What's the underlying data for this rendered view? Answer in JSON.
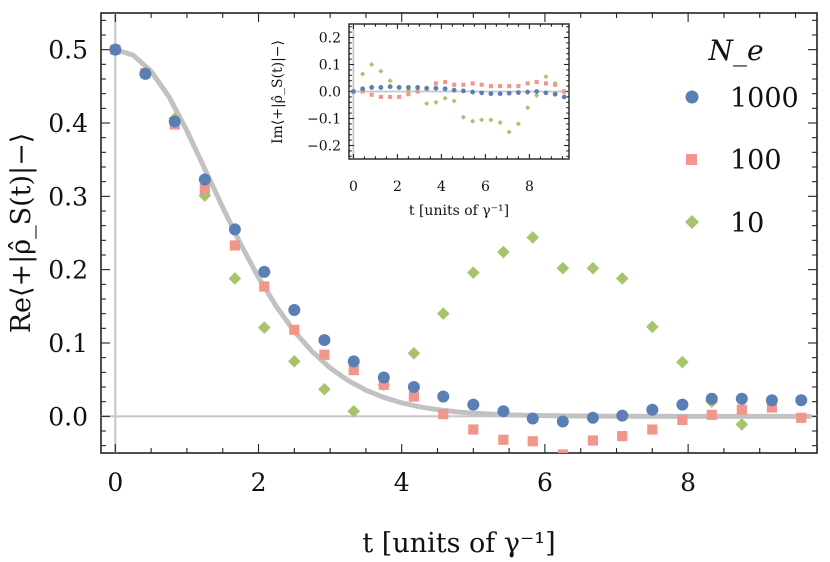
{
  "chart_data": [
    {
      "type": "scatter",
      "title": "",
      "xlabel": "t [units of γ⁻¹]",
      "ylabel": "Re⟨+|ρ̂_S(t)|−⟩",
      "xlim": [
        -0.2,
        9.8
      ],
      "ylim": [
        -0.05,
        0.55
      ],
      "xticks": [
        "0",
        "2",
        "4",
        "6",
        "8"
      ],
      "yticks": [
        "0.0",
        "0.1",
        "0.2",
        "0.3",
        "0.4",
        "0.5"
      ],
      "grid": false,
      "legend": {
        "title": "N_e",
        "placement": "right"
      },
      "reference_curve": {
        "type": "line",
        "note": "",
        "x": [
          0,
          0.25,
          0.5,
          0.75,
          1,
          1.25,
          1.5,
          1.75,
          2,
          2.25,
          2.5,
          2.75,
          3,
          3.25,
          3.5,
          3.75,
          4,
          4.25,
          4.5,
          4.75,
          5,
          5.25,
          5.5,
          5.75,
          6,
          6.5,
          7,
          7.5,
          8,
          8.5,
          9,
          9.7
        ],
        "y": [
          0.5,
          0.4925,
          0.4704,
          0.4357,
          0.3894,
          0.3372,
          0.2849,
          0.2349,
          0.1894,
          0.1497,
          0.1158,
          0.0882,
          0.066,
          0.0489,
          0.0357,
          0.0258,
          0.0184,
          0.013,
          0.0091,
          0.0063,
          0.0043,
          0.003,
          0.002,
          0.0014,
          0.0009,
          0.0004,
          0.0002,
          0.0001,
          0.0,
          0.0,
          0.0,
          0.0
        ]
      },
      "series": [
        {
          "name": "1000",
          "color": "#5a7fb5",
          "marker": "circle",
          "x": [
            0,
            0.42,
            0.83,
            1.25,
            1.67,
            2.08,
            2.5,
            2.92,
            3.33,
            3.75,
            4.17,
            4.58,
            5.0,
            5.42,
            5.83,
            6.25,
            6.67,
            7.08,
            7.5,
            7.92,
            8.33,
            8.75,
            9.17,
            9.58
          ],
          "y": [
            0.5,
            0.467,
            0.402,
            0.323,
            0.255,
            0.197,
            0.145,
            0.104,
            0.075,
            0.053,
            0.04,
            0.027,
            0.016,
            0.007,
            -0.003,
            -0.007,
            -0.002,
            0.001,
            0.009,
            0.016,
            0.024,
            0.024,
            0.022,
            0.022
          ]
        },
        {
          "name": "100",
          "color": "#f0968a",
          "marker": "square",
          "x": [
            0,
            0.42,
            0.83,
            1.25,
            1.67,
            2.08,
            2.5,
            2.92,
            3.33,
            3.75,
            4.17,
            4.58,
            5.0,
            5.42,
            5.83,
            6.25,
            6.67,
            7.08,
            7.5,
            7.92,
            8.33,
            8.75,
            9.17,
            9.58
          ],
          "y": [
            0.5,
            0.468,
            0.398,
            0.31,
            0.233,
            0.177,
            0.118,
            0.084,
            0.063,
            0.043,
            0.027,
            0.003,
            -0.018,
            -0.032,
            -0.034,
            -0.052,
            -0.033,
            -0.027,
            -0.018,
            -0.005,
            0.002,
            0.009,
            0.012,
            -0.002
          ]
        },
        {
          "name": "10",
          "color": "#a7c46d",
          "marker": "diamond",
          "x": [
            0,
            0.42,
            0.83,
            1.25,
            1.67,
            2.08,
            2.5,
            2.92,
            3.33,
            3.75,
            4.17,
            4.58,
            5.0,
            5.42,
            5.83,
            6.25,
            6.67,
            7.08,
            7.5,
            7.92,
            8.33,
            8.75
          ],
          "y": [
            0.5,
            0.469,
            0.406,
            0.301,
            0.188,
            0.121,
            0.075,
            0.037,
            0.007,
            0.043,
            0.086,
            0.14,
            0.196,
            0.224,
            0.244,
            0.202,
            0.202,
            0.188,
            0.122,
            0.074,
            0.02,
            -0.011
          ]
        }
      ]
    },
    {
      "type": "scatter",
      "title": "",
      "xlabel": "t [units of γ⁻¹]",
      "ylabel": "Im⟨+|ρ̂_S(t)|−⟩",
      "xlim": [
        -0.2,
        9.8
      ],
      "ylim": [
        -0.25,
        0.25
      ],
      "xticks": [
        "0",
        "2",
        "4",
        "6",
        "8"
      ],
      "yticks": [
        "−0.2",
        "−0.1",
        "0.0",
        "0.1",
        "0.2"
      ],
      "grid": false,
      "series": [
        {
          "name": "1000",
          "color": "#5a7fb5",
          "marker": "circle",
          "x": [
            0,
            0.42,
            0.83,
            1.25,
            1.67,
            2.08,
            2.5,
            2.92,
            3.33,
            3.75,
            4.17,
            4.58,
            5.0,
            5.42,
            5.83,
            6.25,
            6.67,
            7.08,
            7.5,
            7.92,
            8.33,
            8.75,
            9.17,
            9.58
          ],
          "y": [
            0.0,
            0.01,
            0.015,
            0.015,
            0.018,
            0.015,
            0.015,
            0.015,
            0.012,
            0.012,
            0.01,
            0.005,
            0.002,
            -0.002,
            -0.005,
            -0.008,
            -0.008,
            -0.006,
            -0.004,
            -0.002,
            0.0,
            -0.005,
            -0.01,
            -0.02
          ]
        },
        {
          "name": "100",
          "color": "#f0968a",
          "marker": "square",
          "x": [
            0,
            0.42,
            0.83,
            1.25,
            1.67,
            2.08,
            2.5,
            2.92,
            3.33,
            3.75,
            4.17,
            4.58,
            5.0,
            5.42,
            5.83,
            6.25,
            6.67,
            7.08,
            7.5,
            7.92,
            8.33,
            8.75,
            9.17,
            9.58
          ],
          "y": [
            0.0,
            0.0,
            -0.012,
            -0.02,
            -0.02,
            -0.02,
            -0.01,
            0.0,
            0.01,
            0.03,
            0.035,
            0.025,
            0.025,
            0.03,
            0.025,
            0.02,
            0.02,
            0.02,
            0.02,
            0.03,
            0.035,
            0.03,
            0.025,
            0.0
          ]
        },
        {
          "name": "10",
          "color": "#a7c46d",
          "marker": "diamond",
          "x": [
            0,
            0.42,
            0.83,
            1.25,
            1.67,
            2.08,
            2.5,
            2.92,
            3.33,
            3.75,
            4.17,
            4.58,
            5.0,
            5.42,
            5.83,
            6.25,
            6.67,
            7.08,
            7.5,
            7.92,
            8.33,
            8.75,
            9.17,
            9.58
          ],
          "y": [
            0.0,
            0.065,
            0.1,
            0.075,
            0.04,
            0.015,
            0.005,
            0.0,
            -0.045,
            -0.04,
            -0.025,
            -0.035,
            -0.095,
            -0.11,
            -0.105,
            -0.105,
            -0.115,
            -0.15,
            -0.12,
            -0.06,
            -0.015,
            0.055,
            0.03,
            0.0
          ]
        }
      ]
    }
  ]
}
